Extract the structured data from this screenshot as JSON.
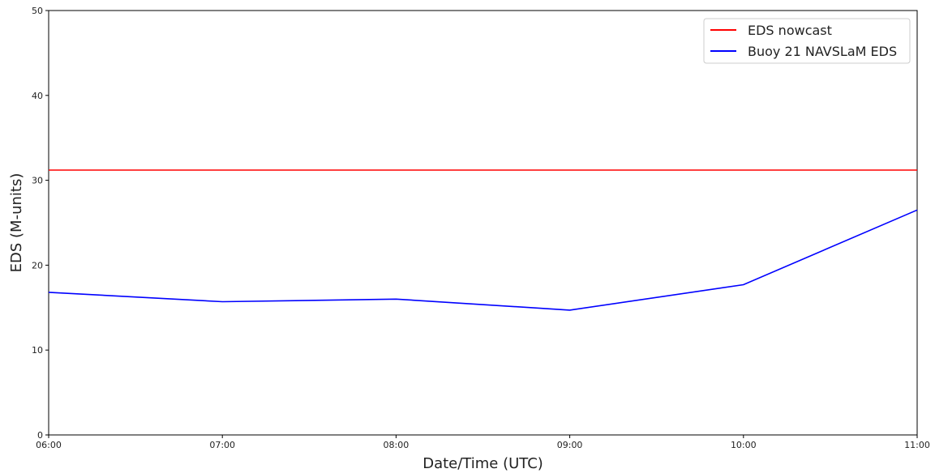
{
  "chart_data": {
    "type": "line",
    "title": "",
    "xlabel": "Date/Time (UTC)",
    "ylabel": "EDS (M-units)",
    "x": [
      "06:00",
      "07:00",
      "08:00",
      "09:00",
      "10:00",
      "11:00"
    ],
    "xlim": [
      "06:00",
      "11:00"
    ],
    "ylim": [
      0,
      50
    ],
    "yticks": [
      0,
      10,
      20,
      30,
      40,
      50
    ],
    "grid": false,
    "legend_position": "top-right",
    "series": [
      {
        "name": "EDS nowcast",
        "color": "#ff0000",
        "values": [
          31.2,
          31.2,
          31.2,
          31.2,
          31.2,
          31.2
        ]
      },
      {
        "name": "Buoy 21 NAVSLaM EDS",
        "color": "#0000ff",
        "values": [
          16.8,
          15.7,
          16.0,
          14.7,
          17.7,
          26.5
        ]
      }
    ]
  }
}
